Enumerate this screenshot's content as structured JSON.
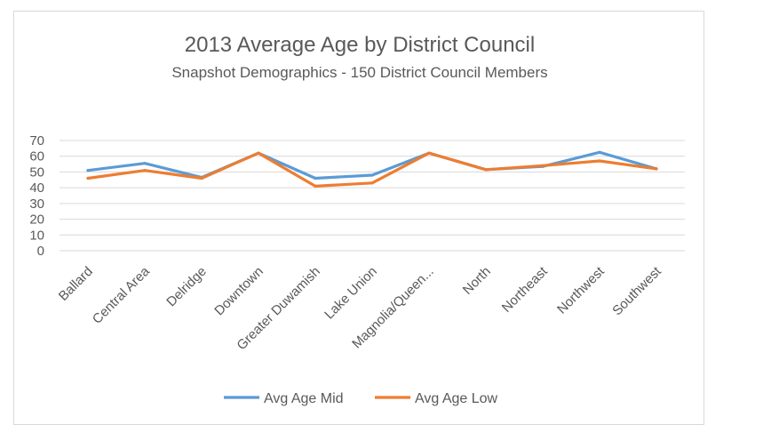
{
  "chart_data": {
    "type": "line",
    "title": "2013 Average Age by District Council",
    "subtitle": "Snapshot Demographics - 150 District Council Members",
    "categories": [
      "Ballard",
      "Central Area",
      "Delridge",
      "Downtown",
      "Greater Duwamish",
      "Lake Union",
      "Magnolia/Queen...",
      "North",
      "Northeast",
      "Northwest",
      "Southwest"
    ],
    "series": [
      {
        "name": "Avg Age Mid",
        "color": "#5b9bd5",
        "values": [
          51,
          55.5,
          46.5,
          62,
          46,
          48,
          62,
          51.5,
          53.5,
          62.5,
          52
        ]
      },
      {
        "name": "Avg Age Low",
        "color": "#ed7d31",
        "values": [
          46,
          51,
          46,
          62,
          41,
          43,
          62,
          51.5,
          54,
          57,
          52
        ]
      }
    ],
    "yticks": [
      0,
      10,
      20,
      30,
      40,
      50,
      60,
      70
    ],
    "ylim": [
      0,
      70
    ],
    "xlabel": "",
    "ylabel": "",
    "grid": true,
    "legend": "bottom"
  }
}
